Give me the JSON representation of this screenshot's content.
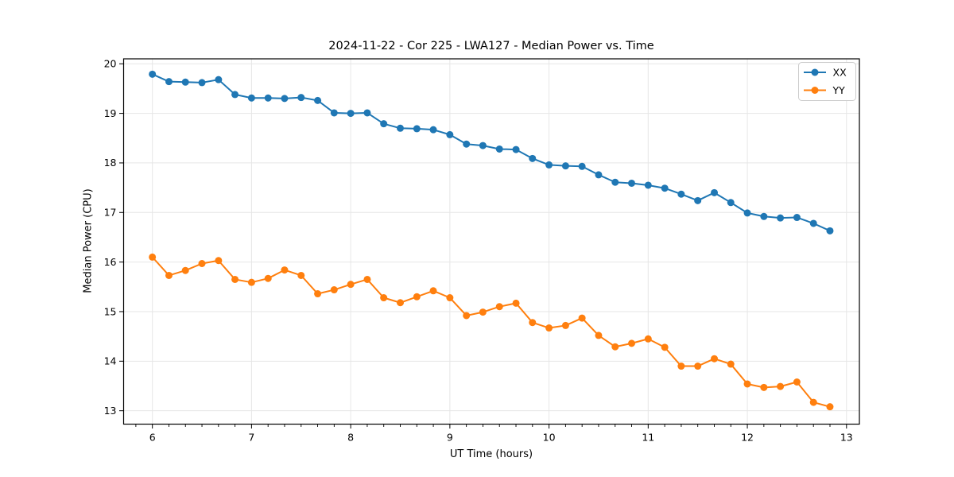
{
  "window": {
    "background": "#ffffff"
  },
  "chart_data": {
    "type": "line",
    "title": "2024-11-22 - Cor 225 - LWA127 - Median Power vs. Time",
    "xlabel": "UT Time (hours)",
    "ylabel": "Median Power (CPU)",
    "xlim": [
      5.71,
      13.13
    ],
    "ylim": [
      12.73,
      20.1
    ],
    "x_ticks": [
      6,
      7,
      8,
      9,
      10,
      11,
      12,
      13
    ],
    "y_ticks": [
      13,
      14,
      15,
      16,
      17,
      18,
      19,
      20
    ],
    "x_minor_ticks_per_hour": 6,
    "grid": true,
    "grid_color": "#e6e6e6",
    "axis_color": "#000000",
    "legend_position": "upper right",
    "marker": "circle",
    "x": [
      6.0,
      6.167,
      6.333,
      6.5,
      6.667,
      6.833,
      7.0,
      7.167,
      7.333,
      7.5,
      7.667,
      7.833,
      8.0,
      8.167,
      8.333,
      8.5,
      8.667,
      8.833,
      9.0,
      9.167,
      9.333,
      9.5,
      9.667,
      9.833,
      10.0,
      10.167,
      10.333,
      10.5,
      10.667,
      10.833,
      11.0,
      11.167,
      11.333,
      11.5,
      11.667,
      11.833,
      12.0,
      12.167,
      12.333,
      12.5,
      12.667,
      12.833
    ],
    "series": [
      {
        "name": "XX",
        "color": "#1f77b4",
        "values": [
          19.79,
          19.64,
          19.63,
          19.62,
          19.68,
          19.38,
          19.31,
          19.31,
          19.3,
          19.32,
          19.26,
          19.01,
          19.0,
          19.01,
          18.79,
          18.7,
          18.69,
          18.67,
          18.57,
          18.38,
          18.35,
          18.28,
          18.27,
          18.09,
          17.96,
          17.94,
          17.93,
          17.76,
          17.61,
          17.59,
          17.55,
          17.49,
          17.37,
          17.24,
          17.4,
          17.2,
          16.99,
          16.92,
          16.89,
          16.9,
          16.78,
          16.63
        ]
      },
      {
        "name": "YY",
        "color": "#ff7f0e",
        "values": [
          16.1,
          15.73,
          15.83,
          15.97,
          16.03,
          15.65,
          15.59,
          15.67,
          15.84,
          15.73,
          15.36,
          15.44,
          15.55,
          15.65,
          15.28,
          15.18,
          15.3,
          15.42,
          15.28,
          14.92,
          14.99,
          15.1,
          15.17,
          14.78,
          14.67,
          14.72,
          14.87,
          14.52,
          14.29,
          14.36,
          14.45,
          14.28,
          13.9,
          13.9,
          14.05,
          13.94,
          13.54,
          13.47,
          13.49,
          13.58,
          13.17,
          13.08
        ]
      }
    ]
  }
}
